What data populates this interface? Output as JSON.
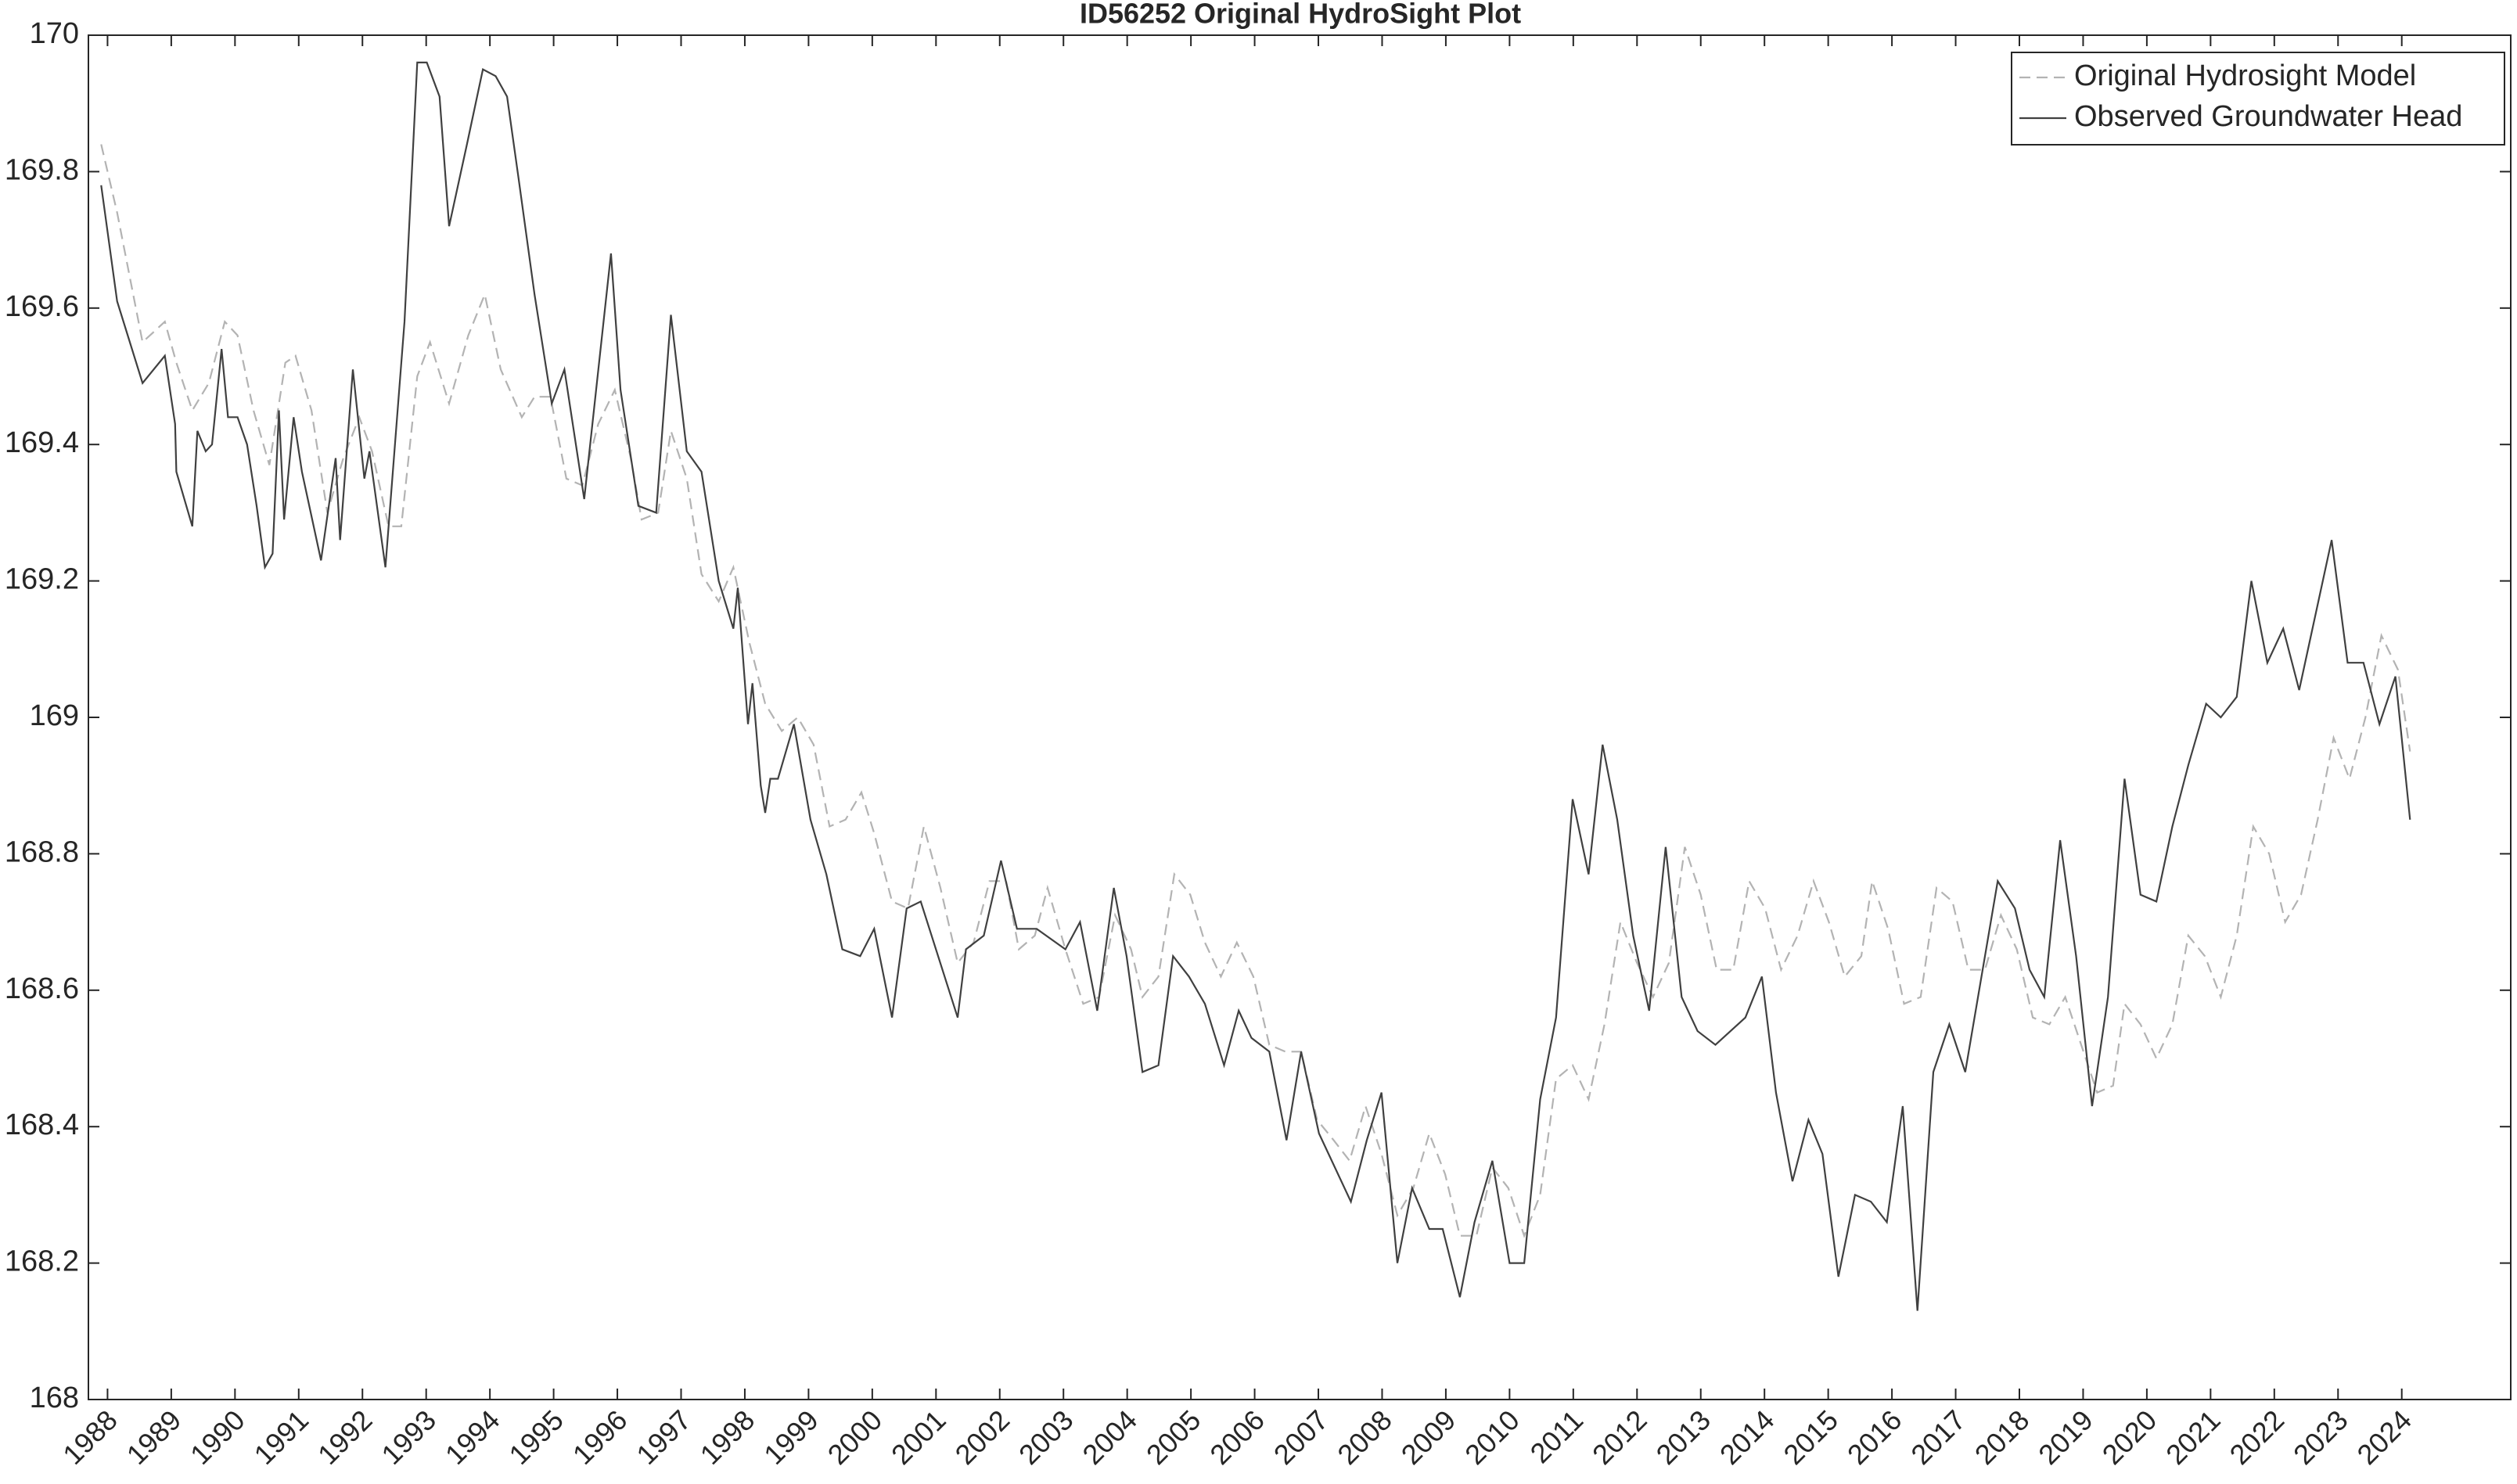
{
  "chart_data": {
    "type": "line",
    "title": "ID56252 Original HydroSight Plot",
    "xlim": [
      1987.7,
      2025.71
    ],
    "ylim": [
      168,
      170
    ],
    "xticks": [
      1988,
      1989,
      1990,
      1991,
      1992,
      1993,
      1994,
      1995,
      1996,
      1997,
      1998,
      1999,
      2000,
      2001,
      2002,
      2003,
      2004,
      2005,
      2006,
      2007,
      2008,
      2009,
      2010,
      2011,
      2012,
      2013,
      2014,
      2015,
      2016,
      2017,
      2018,
      2019,
      2020,
      2021,
      2022,
      2023,
      2024
    ],
    "yticks": [
      168,
      168.2,
      168.4,
      168.6,
      168.8,
      169,
      169.2,
      169.4,
      169.6,
      169.8,
      170
    ],
    "legend": "northeast",
    "series": [
      {
        "name": "Original Hydrosight Model",
        "color": "#b3b3b3",
        "line_style": "dashed",
        "x": [
          1987.9,
          1988.15,
          1988.55,
          1988.9,
          1989.08,
          1989.33,
          1989.59,
          1989.84,
          1990.04,
          1990.29,
          1990.54,
          1990.79,
          1990.95,
          1991.2,
          1991.45,
          1991.7,
          1991.95,
          1992.15,
          1992.41,
          1992.61,
          1992.86,
          1993.06,
          1993.36,
          1993.66,
          1993.92,
          1994.17,
          1994.5,
          1994.7,
          1994.95,
          1995.2,
          1995.45,
          1995.7,
          1995.96,
          1996.21,
          1996.38,
          1996.64,
          1996.84,
          1997.09,
          1997.32,
          1997.59,
          1997.82,
          1998.07,
          1998.32,
          1998.58,
          1998.83,
          1999.08,
          1999.33,
          1999.58,
          1999.83,
          2000.03,
          2000.31,
          2000.56,
          2000.81,
          2001.07,
          2001.34,
          2001.59,
          2001.84,
          2002.1,
          2002.3,
          2002.55,
          2002.75,
          2003.03,
          2003.31,
          2003.56,
          2003.81,
          2004.06,
          2004.24,
          2004.49,
          2004.74,
          2004.99,
          2005.22,
          2005.47,
          2005.72,
          2005.98,
          2006.23,
          2006.48,
          2006.73,
          2006.98,
          2007.24,
          2007.49,
          2007.74,
          2007.99,
          2008.24,
          2008.49,
          2008.74,
          2008.99,
          2009.22,
          2009.48,
          2009.73,
          2009.98,
          2010.23,
          2010.48,
          2010.73,
          2010.99,
          2011.24,
          2011.49,
          2011.74,
          2012.0,
          2012.25,
          2012.5,
          2012.75,
          2013.0,
          2013.25,
          2013.51,
          2013.76,
          2014.01,
          2014.26,
          2014.52,
          2014.77,
          2015.01,
          2015.26,
          2015.52,
          2015.69,
          2015.94,
          2016.19,
          2016.45,
          2016.7,
          2016.95,
          2017.2,
          2017.46,
          2017.71,
          2017.96,
          2018.21,
          2018.47,
          2018.72,
          2018.97,
          2019.22,
          2019.47,
          2019.65,
          2019.9,
          2020.15,
          2020.4,
          2020.65,
          2020.91,
          2021.16,
          2021.41,
          2021.67,
          2021.92,
          2022.17,
          2022.42,
          2022.68,
          2022.93,
          2023.18,
          2023.43,
          2023.68,
          2023.94,
          2024.13
        ],
        "values": [
          169.84,
          169.74,
          169.55,
          169.58,
          169.52,
          169.45,
          169.49,
          169.58,
          169.56,
          169.45,
          169.37,
          169.52,
          169.53,
          169.45,
          169.3,
          169.38,
          169.44,
          169.39,
          169.28,
          169.28,
          169.5,
          169.55,
          169.46,
          169.56,
          169.62,
          169.51,
          169.44,
          169.47,
          169.47,
          169.35,
          169.34,
          169.43,
          169.48,
          169.38,
          169.29,
          169.3,
          169.42,
          169.35,
          169.21,
          169.17,
          169.22,
          169.11,
          169.02,
          168.98,
          169.0,
          168.96,
          168.84,
          168.85,
          168.89,
          168.83,
          168.73,
          168.72,
          168.84,
          168.75,
          168.64,
          168.67,
          168.76,
          168.76,
          168.66,
          168.68,
          168.75,
          168.66,
          168.58,
          168.59,
          168.71,
          168.66,
          168.59,
          168.62,
          168.77,
          168.74,
          168.67,
          168.62,
          168.67,
          168.62,
          168.52,
          168.51,
          168.51,
          168.41,
          168.38,
          168.35,
          168.43,
          168.36,
          168.27,
          168.31,
          168.39,
          168.33,
          168.24,
          168.24,
          168.34,
          168.31,
          168.24,
          168.3,
          168.47,
          168.49,
          168.44,
          168.55,
          168.7,
          168.64,
          168.59,
          168.64,
          168.81,
          168.74,
          168.63,
          168.63,
          168.76,
          168.72,
          168.63,
          168.68,
          168.76,
          168.7,
          168.62,
          168.65,
          168.76,
          168.69,
          168.58,
          168.59,
          168.75,
          168.73,
          168.63,
          168.63,
          168.71,
          168.66,
          168.56,
          168.55,
          168.59,
          168.52,
          168.45,
          168.46,
          168.58,
          168.55,
          168.5,
          168.55,
          168.68,
          168.65,
          168.59,
          168.68,
          168.84,
          168.8,
          168.7,
          168.74,
          168.85,
          168.97,
          168.91,
          169.0,
          169.12,
          169.07,
          168.95
        ]
      },
      {
        "name": "Observed Groundwater Head",
        "color": "#404040",
        "line_style": "solid",
        "x": [
          1987.9,
          1988.15,
          1988.55,
          1988.9,
          1989.06,
          1989.08,
          1989.33,
          1989.41,
          1989.54,
          1989.64,
          1989.79,
          1989.89,
          1990.04,
          1990.19,
          1990.34,
          1990.47,
          1990.59,
          1990.69,
          1990.77,
          1990.92,
          1991.05,
          1991.35,
          1991.58,
          1991.65,
          1991.85,
          1992.03,
          1992.11,
          1992.36,
          1992.66,
          1992.86,
          1993.01,
          1993.21,
          1993.36,
          1993.64,
          1993.89,
          1994.09,
          1994.27,
          1994.45,
          1994.7,
          1994.97,
          1995.17,
          1995.48,
          1995.9,
          1996.05,
          1996.33,
          1996.61,
          1996.84,
          1997.09,
          1997.32,
          1997.59,
          1997.82,
          1997.89,
          1998.05,
          1998.12,
          1998.25,
          1998.32,
          1998.4,
          1998.52,
          1998.77,
          1999.03,
          1999.28,
          1999.53,
          1999.81,
          2000.03,
          2000.31,
          2000.54,
          2000.76,
          2001.34,
          2001.47,
          2001.75,
          2002.02,
          2002.27,
          2002.58,
          2003.03,
          2003.26,
          2003.53,
          2003.79,
          2003.99,
          2004.24,
          2004.49,
          2004.72,
          2004.97,
          2005.22,
          2005.52,
          2005.75,
          2005.95,
          2006.23,
          2006.5,
          2006.73,
          2007.01,
          2007.51,
          2007.76,
          2007.99,
          2008.24,
          2008.47,
          2008.74,
          2008.95,
          2009.22,
          2009.45,
          2009.73,
          2010.0,
          2010.23,
          2010.48,
          2010.73,
          2010.99,
          2011.24,
          2011.46,
          2011.69,
          2011.94,
          2012.19,
          2012.45,
          2012.7,
          2012.95,
          2013.23,
          2013.7,
          2013.96,
          2014.18,
          2014.44,
          2014.69,
          2014.91,
          2015.16,
          2015.42,
          2015.67,
          2015.92,
          2016.17,
          2016.4,
          2016.65,
          2016.9,
          2017.15,
          2017.66,
          2017.93,
          2018.16,
          2018.39,
          2018.64,
          2018.89,
          2019.14,
          2019.39,
          2019.65,
          2019.9,
          2020.15,
          2020.4,
          2020.65,
          2020.93,
          2021.16,
          2021.41,
          2021.64,
          2021.89,
          2022.14,
          2022.39,
          2022.9,
          2023.15,
          2023.4,
          2023.65,
          2023.9,
          2024.13
        ],
        "values": [
          169.78,
          169.61,
          169.49,
          169.53,
          169.43,
          169.36,
          169.28,
          169.42,
          169.39,
          169.4,
          169.54,
          169.44,
          169.44,
          169.4,
          169.31,
          169.22,
          169.24,
          169.45,
          169.29,
          169.44,
          169.36,
          169.23,
          169.38,
          169.26,
          169.51,
          169.35,
          169.39,
          169.22,
          169.58,
          169.96,
          169.96,
          169.91,
          169.72,
          169.84,
          169.95,
          169.94,
          169.91,
          169.79,
          169.62,
          169.46,
          169.51,
          169.32,
          169.68,
          169.48,
          169.31,
          169.3,
          169.59,
          169.39,
          169.36,
          169.2,
          169.13,
          169.19,
          168.99,
          169.05,
          168.9,
          168.86,
          168.91,
          168.91,
          168.99,
          168.85,
          168.77,
          168.66,
          168.65,
          168.69,
          168.56,
          168.72,
          168.73,
          168.56,
          168.66,
          168.68,
          168.79,
          168.69,
          168.69,
          168.66,
          168.7,
          168.57,
          168.75,
          168.65,
          168.48,
          168.49,
          168.65,
          168.62,
          168.58,
          168.49,
          168.57,
          168.53,
          168.51,
          168.38,
          168.51,
          168.39,
          168.29,
          168.38,
          168.45,
          168.2,
          168.31,
          168.25,
          168.25,
          168.15,
          168.26,
          168.35,
          168.2,
          168.2,
          168.44,
          168.56,
          168.88,
          168.77,
          168.96,
          168.85,
          168.68,
          168.57,
          168.81,
          168.59,
          168.54,
          168.52,
          168.56,
          168.62,
          168.45,
          168.32,
          168.41,
          168.36,
          168.18,
          168.3,
          168.29,
          168.26,
          168.43,
          168.13,
          168.48,
          168.55,
          168.48,
          168.76,
          168.72,
          168.63,
          168.59,
          168.82,
          168.65,
          168.43,
          168.59,
          168.91,
          168.74,
          168.73,
          168.84,
          168.93,
          169.02,
          169.0,
          169.03,
          169.2,
          169.08,
          169.13,
          169.04,
          169.26,
          169.08,
          169.08,
          168.99,
          169.06,
          168.85
        ]
      }
    ]
  }
}
